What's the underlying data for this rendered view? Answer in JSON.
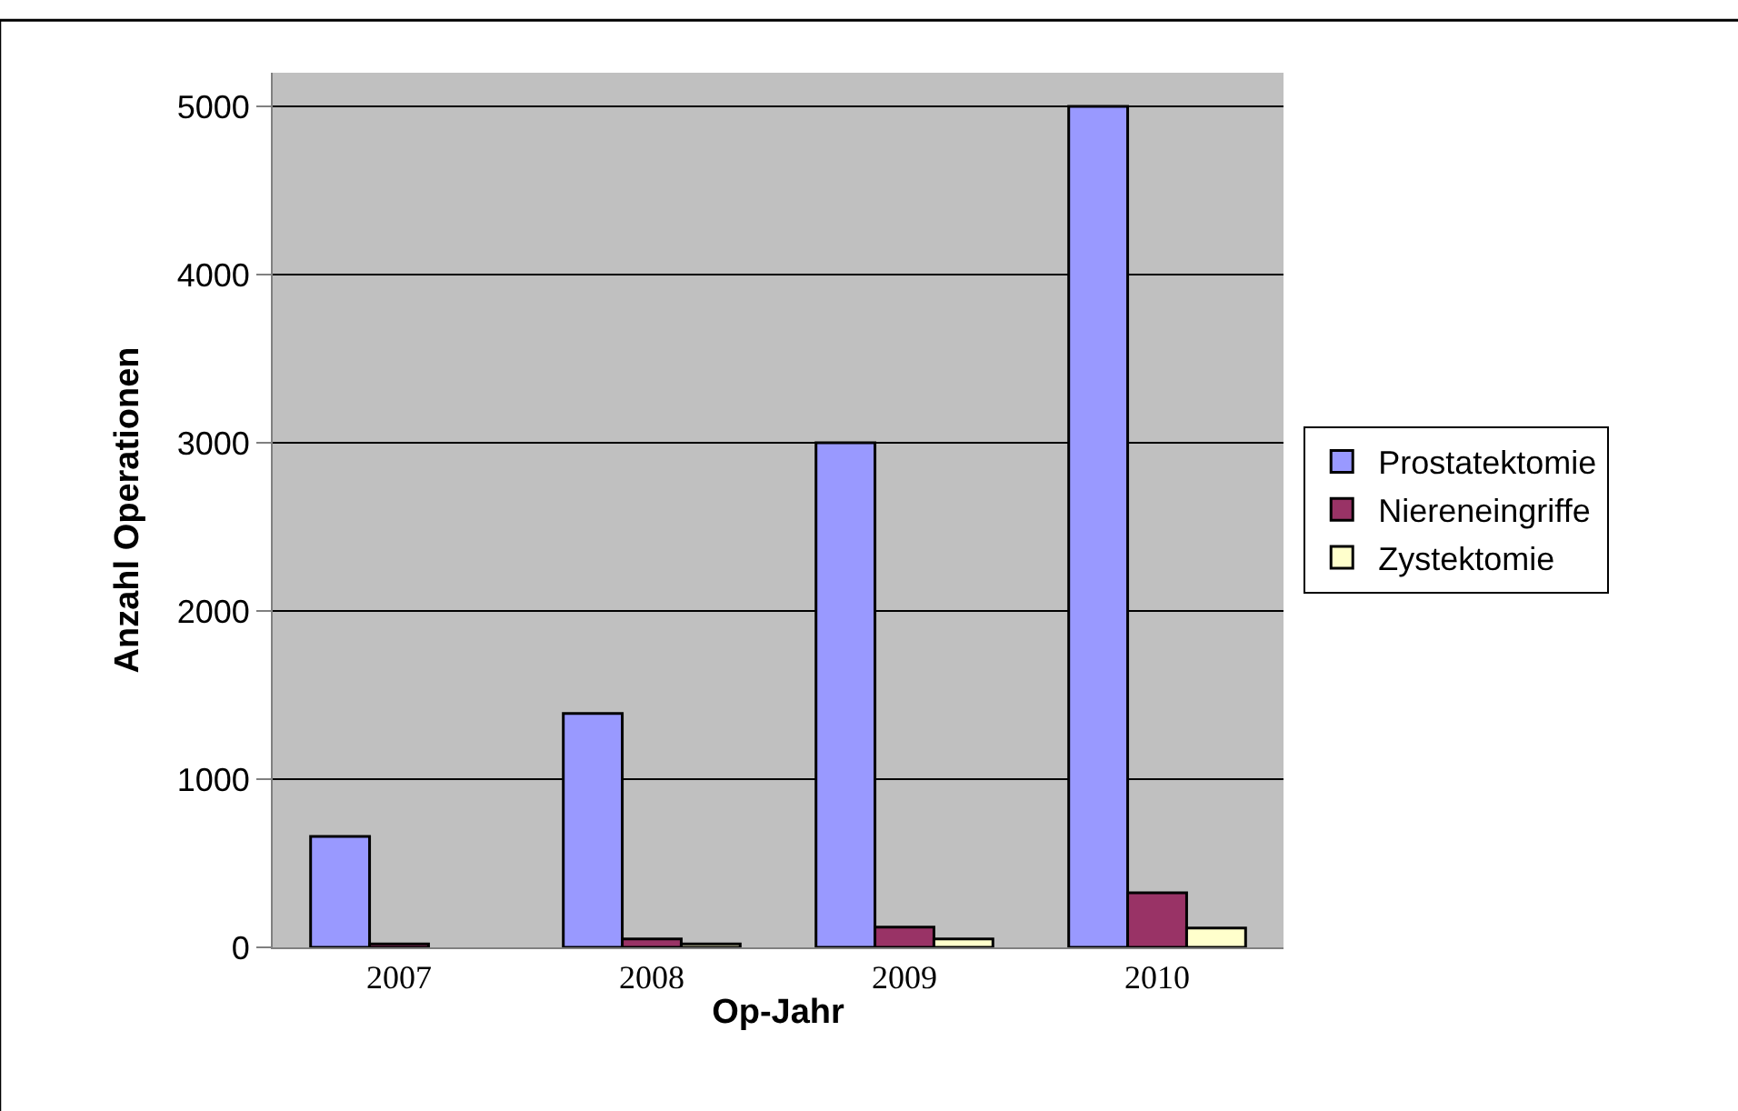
{
  "chart_data": {
    "type": "bar",
    "xlabel": "Op-Jahr",
    "ylabel": "Anzahl Operationen",
    "categories": [
      "2007",
      "2008",
      "2009",
      "2010"
    ],
    "series": [
      {
        "name": "Prostatektomie",
        "color": "#9999ff",
        "values": [
          660,
          1390,
          3000,
          5000
        ]
      },
      {
        "name": "Niereneingriffe",
        "color": "#993366",
        "values": [
          20,
          50,
          120,
          325
        ]
      },
      {
        "name": "Zystektomie",
        "color": "#ffffcc",
        "values": [
          null,
          20,
          50,
          115
        ]
      }
    ],
    "ylim": [
      0,
      5200
    ],
    "yticks": [
      0,
      1000,
      2000,
      3000,
      4000,
      5000
    ],
    "grid": "y",
    "legend": "right"
  }
}
